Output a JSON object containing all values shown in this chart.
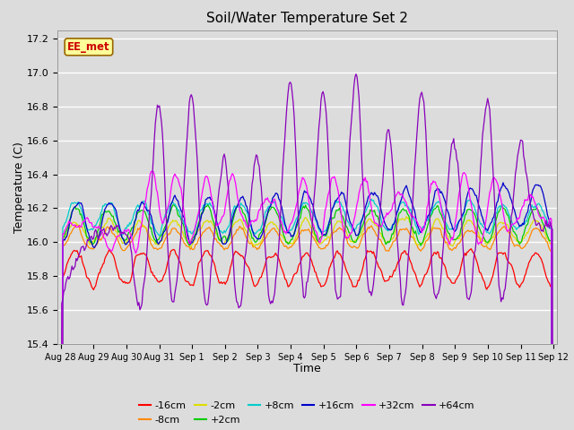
{
  "title": "Soil/Water Temperature Set 2",
  "xlabel": "Time",
  "ylabel": "Temperature (C)",
  "ylim": [
    15.4,
    17.25
  ],
  "yticks": [
    15.4,
    15.6,
    15.8,
    16.0,
    16.2,
    16.4,
    16.6,
    16.8,
    17.0,
    17.2
  ],
  "x_labels": [
    "Aug 28",
    "Aug 29",
    "Aug 30",
    "Aug 31",
    "Sep 1",
    "Sep 2",
    "Sep 3",
    "Sep 4",
    "Sep 5",
    "Sep 6",
    "Sep 7",
    "Sep 8",
    "Sep 9",
    "Sep 10",
    "Sep 11",
    "Sep 12"
  ],
  "annotation": "EE_met",
  "annotation_color": "#cc0000",
  "annotation_bg": "#ffff99",
  "annotation_border": "#996600",
  "series": [
    {
      "label": "-16cm",
      "color": "#ff0000"
    },
    {
      "label": "-8cm",
      "color": "#ff8800"
    },
    {
      "label": "-2cm",
      "color": "#dddd00"
    },
    {
      "label": "+2cm",
      "color": "#00cc00"
    },
    {
      "label": "+8cm",
      "color": "#00cccc"
    },
    {
      "label": "+16cm",
      "color": "#0000cc"
    },
    {
      "label": "+32cm",
      "color": "#ff00ff"
    },
    {
      "label": "+64cm",
      "color": "#8800bb"
    }
  ],
  "fig_width": 6.4,
  "fig_height": 4.8,
  "dpi": 100
}
